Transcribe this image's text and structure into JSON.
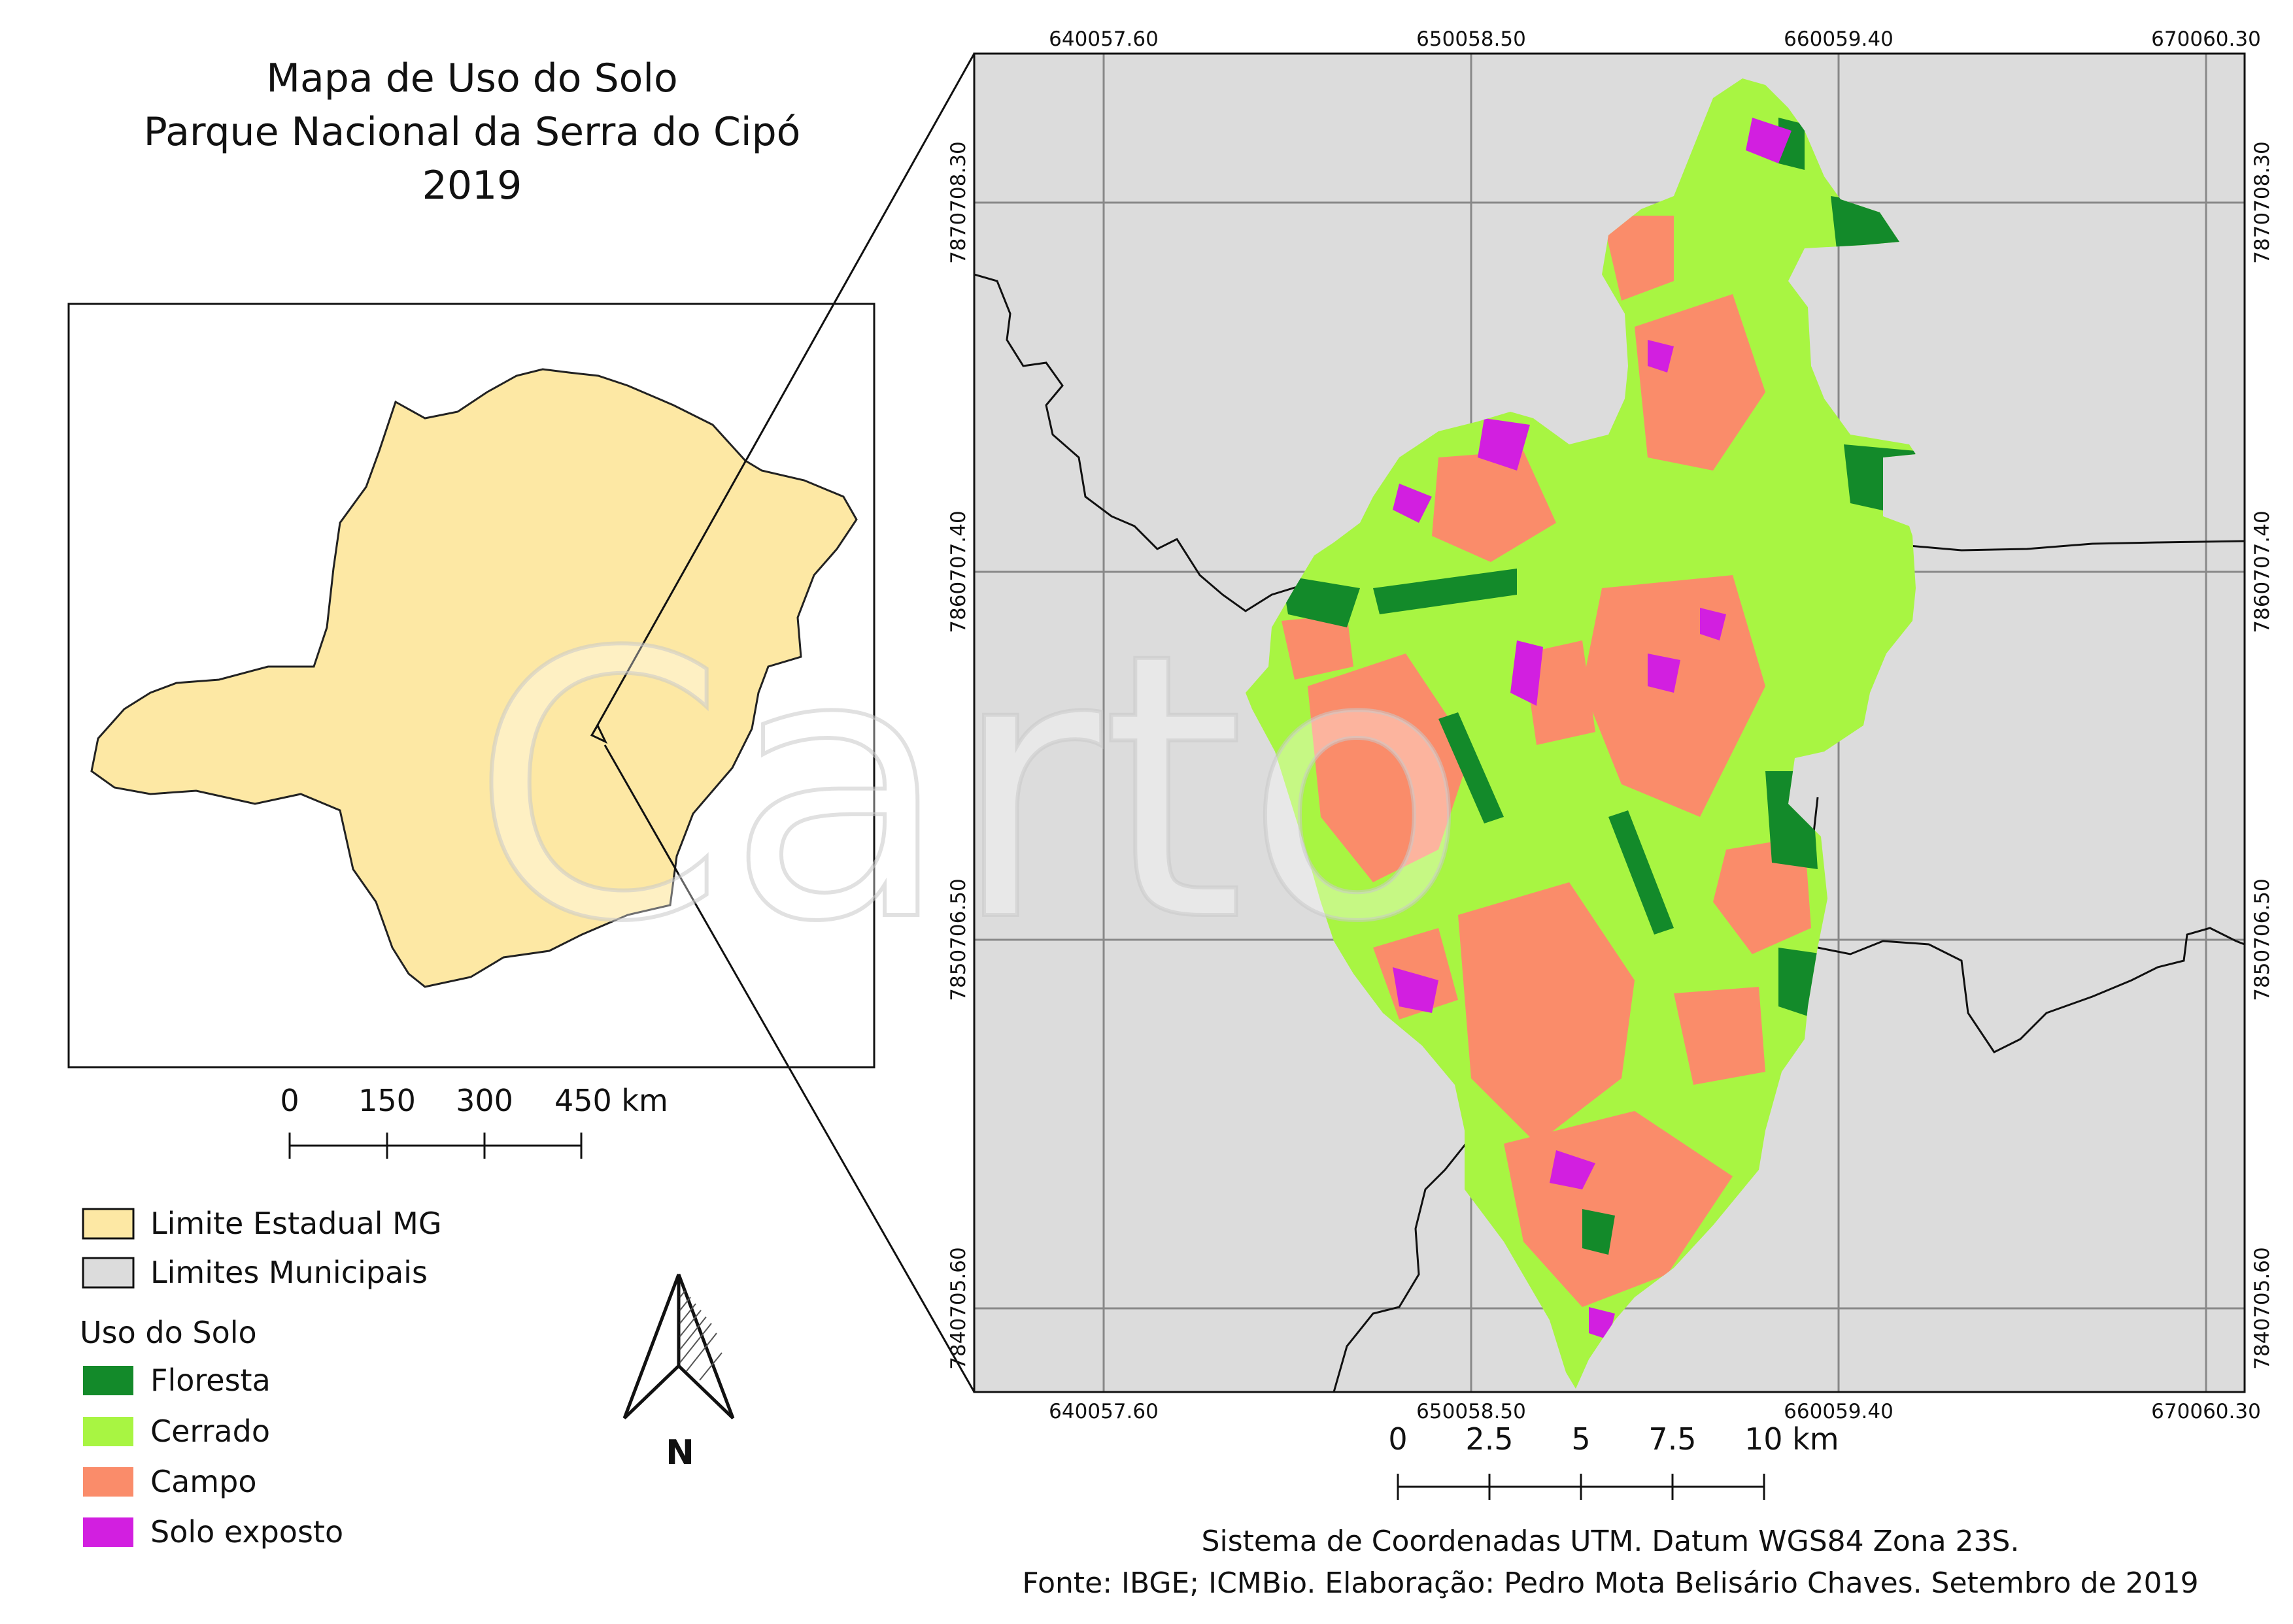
{
  "title": {
    "line1": "Mapa de Uso do Solo",
    "line2": "Parque Nacional da Serra do Cipó",
    "line3": "2019"
  },
  "inset_map": {
    "state_fill": "#fde8a4",
    "scale_labels": [
      "0",
      "150",
      "300",
      "450 km"
    ]
  },
  "main_map": {
    "background": "#dcdcdc",
    "top_coords": [
      "640057.60",
      "650058.50",
      "660059.40",
      "670060.30"
    ],
    "bottom_coords": [
      "640057.60",
      "650058.50",
      "660059.40",
      "670060.30"
    ],
    "left_coords": [
      "7870708.30",
      "7860707.40",
      "7850706.50",
      "7840705.60"
    ],
    "right_coords": [
      "7870708.30",
      "7860707.40",
      "7850706.50",
      "7840705.60"
    ],
    "scale_labels": [
      "0",
      "2.5",
      "5",
      "7.5",
      "10 km"
    ]
  },
  "legend": {
    "boundary_items": [
      {
        "label": "Limite Estadual MG",
        "color": "#fde8a4"
      },
      {
        "label": "Limites Municipais",
        "color": "#dcdcdc"
      }
    ],
    "land_use_title": "Uso do Solo",
    "land_use_items": [
      {
        "label": "Floresta",
        "color": "#138a2a"
      },
      {
        "label": "Cerrado",
        "color": "#a8f542"
      },
      {
        "label": "Campo",
        "color": "#fa8c6a"
      },
      {
        "label": "Solo exposto",
        "color": "#d21fe0"
      }
    ]
  },
  "north_arrow": {
    "label": "N"
  },
  "credits": {
    "line1": "Sistema de Coordenadas UTM. Datum WGS84 Zona 23S.",
    "line2": "Fonte: IBGE; ICMBio. Elaboração: Pedro Mota Belisário Chaves. Setembro de 2019"
  },
  "watermark": {
    "text": "Carto"
  }
}
